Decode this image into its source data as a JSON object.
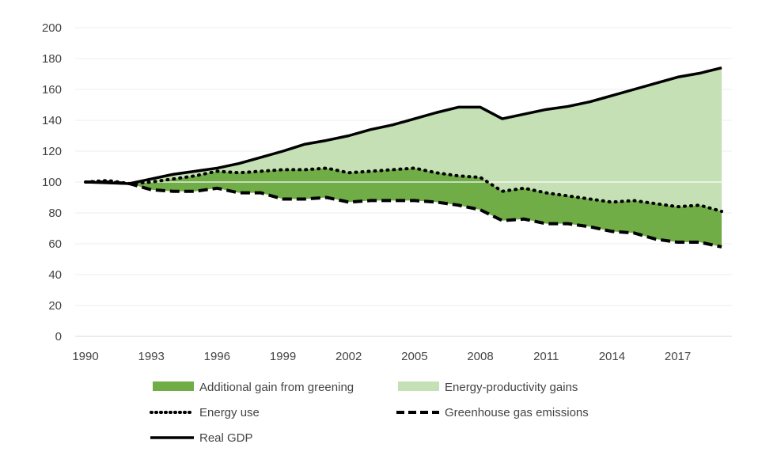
{
  "chart_data": {
    "type": "area",
    "title": "",
    "xlabel": "",
    "ylabel": "",
    "ylim": [
      0,
      200
    ],
    "yticks": [
      "0",
      "20",
      "40",
      "60",
      "80",
      "100",
      "120",
      "140",
      "160",
      "180",
      "200"
    ],
    "xticks": [
      "1990",
      "1993",
      "1996",
      "1999",
      "2002",
      "2005",
      "2008",
      "2011",
      "2014",
      "2017"
    ],
    "x": [
      1990,
      1991,
      1992,
      1993,
      1994,
      1995,
      1996,
      1997,
      1998,
      1999,
      2000,
      2001,
      2002,
      2003,
      2004,
      2005,
      2006,
      2007,
      2008,
      2009,
      2010,
      2011,
      2012,
      2013,
      2014,
      2015,
      2016,
      2017,
      2018,
      2019
    ],
    "grid": true,
    "legend_position": "bottom",
    "series": [
      {
        "name": "Real GDP",
        "style": "solid",
        "values": [
          100,
          99.5,
          99,
          102,
          105,
          107,
          109,
          112,
          116,
          120,
          124.5,
          127,
          130,
          134,
          137,
          141,
          145,
          148.5,
          148.5,
          141,
          144,
          147,
          149,
          152,
          156,
          160,
          164,
          168,
          170.5,
          174
        ]
      },
      {
        "name": "Energy use",
        "style": "dotted",
        "values": [
          100,
          101,
          99,
          100,
          102,
          104,
          107,
          106,
          107,
          108,
          108,
          109,
          106,
          107,
          108,
          109,
          106,
          104,
          103,
          94,
          96,
          93,
          91,
          89,
          87,
          88,
          86,
          84,
          85,
          81
        ]
      },
      {
        "name": "Greenhouse gas emissions",
        "style": "dashed",
        "values": [
          100,
          100,
          99,
          95,
          94,
          94,
          96,
          93,
          93,
          89,
          89,
          90,
          87,
          88,
          88,
          88,
          87,
          85,
          82,
          75,
          76,
          73,
          73,
          71,
          68,
          67,
          63,
          61,
          61,
          58
        ]
      }
    ],
    "areas": [
      {
        "name": "Additional gain from greening",
        "between": [
          "Greenhouse gas emissions",
          "Energy use"
        ],
        "color": "#70ad47"
      },
      {
        "name": "Energy-productivity gains",
        "between": [
          "Energy use",
          "Real GDP"
        ],
        "color": "#c5e0b4"
      }
    ]
  }
}
